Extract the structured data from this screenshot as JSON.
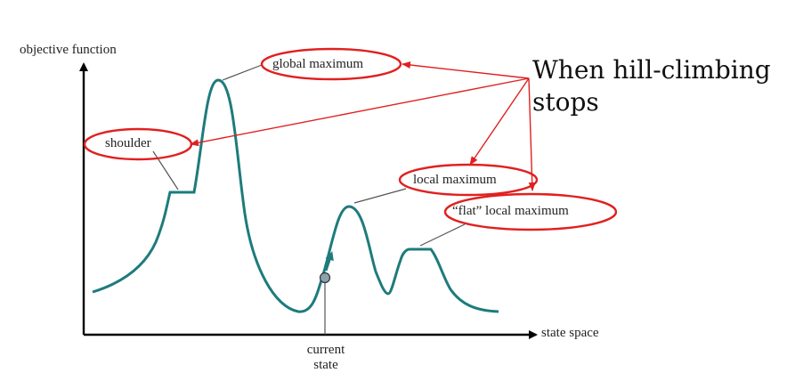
{
  "diagram": {
    "y_axis_label": "objective function",
    "x_axis_label": "state space",
    "labels": {
      "global_maximum": "global maximum",
      "shoulder": "shoulder",
      "local_maximum": "local maximum",
      "flat_local_maximum": "“flat” local maximum",
      "current_state_line1": "current",
      "current_state_line2": "state"
    }
  },
  "overlay": {
    "title_line1": "When hill-climbing",
    "title_line2": "stops"
  },
  "colors": {
    "curve": "#1e7b7c",
    "axis": "#000000",
    "highlight": "#e02020",
    "marker_fill": "#8aa2b0",
    "pointer": "#555555"
  }
}
